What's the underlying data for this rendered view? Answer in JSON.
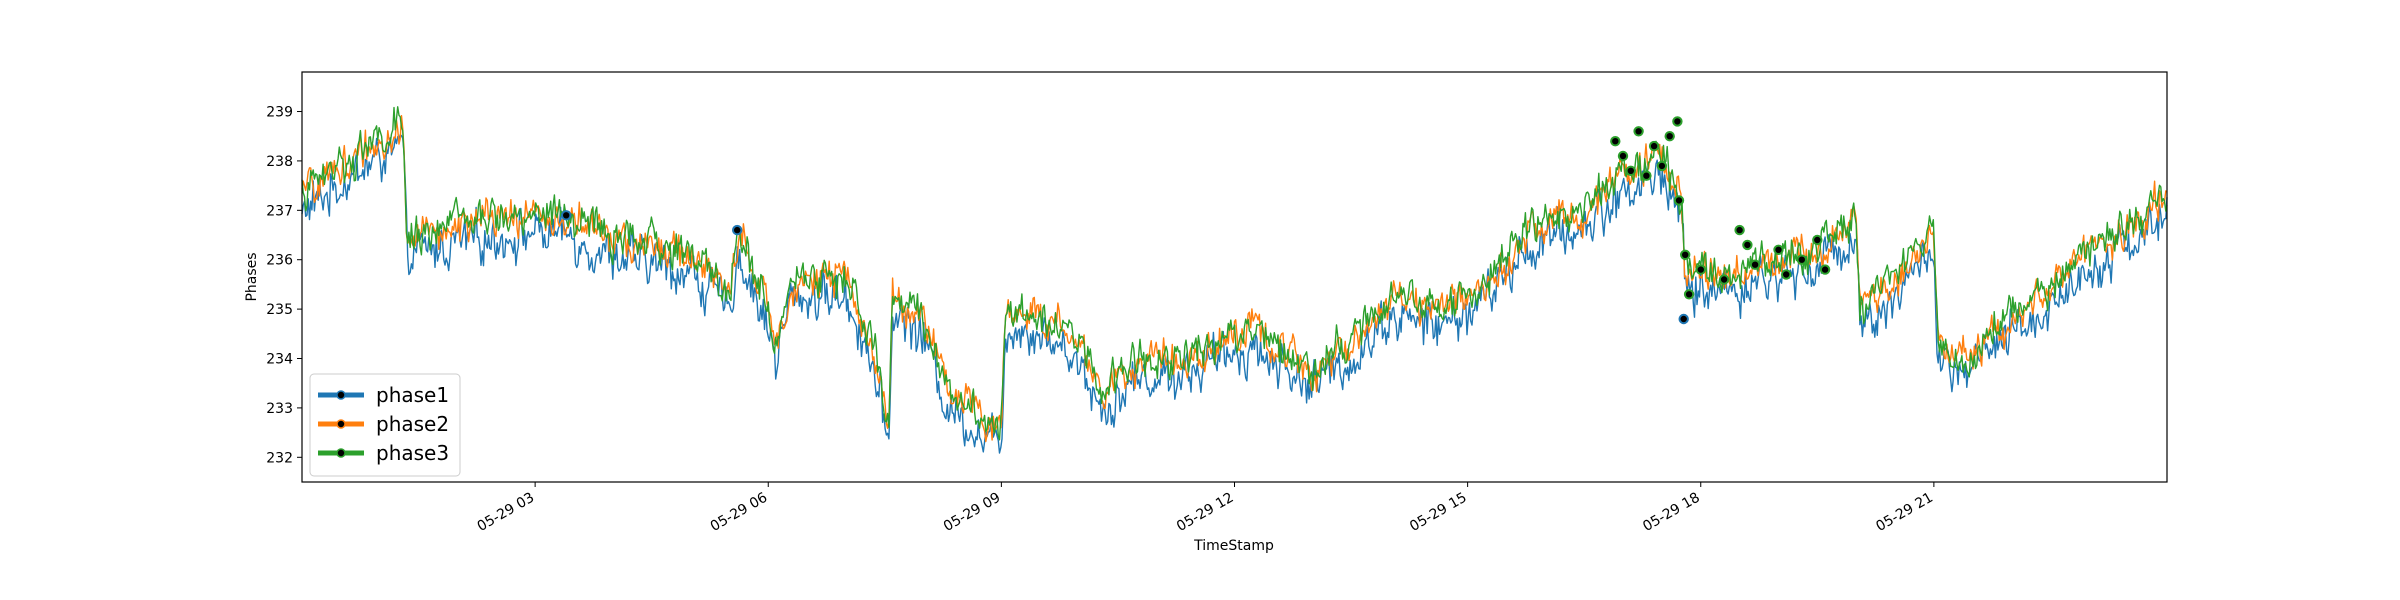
{
  "chart_data": {
    "type": "line",
    "title": "",
    "xlabel": "TimeStamp",
    "ylabel": "Phases",
    "x_domain": [
      "2023-05-29 00:00",
      "2023-05-30 00:00"
    ],
    "xlim_hours": [
      0,
      24
    ],
    "ylim": [
      231.5,
      239.8
    ],
    "x_ticks": [
      {
        "hour": 3,
        "label": "05-29 03"
      },
      {
        "hour": 6,
        "label": "05-29 06"
      },
      {
        "hour": 9,
        "label": "05-29 09"
      },
      {
        "hour": 12,
        "label": "05-29 12"
      },
      {
        "hour": 15,
        "label": "05-29 15"
      },
      {
        "hour": 18,
        "label": "05-29 18"
      },
      {
        "hour": 21,
        "label": "05-29 21"
      }
    ],
    "y_ticks": [
      232,
      233,
      234,
      235,
      236,
      237,
      238,
      239
    ],
    "grid": false,
    "legend_position": "lower-left",
    "series": [
      {
        "name": "phase1",
        "color": "#1f77b4",
        "offset": -0.35,
        "noise": 0.55
      },
      {
        "name": "phase2",
        "color": "#ff7f0e",
        "offset": 0.0,
        "noise": 0.45
      },
      {
        "name": "phase3",
        "color": "#2ca02c",
        "offset": 0.05,
        "noise": 0.45
      }
    ],
    "base_profile_hours": [
      [
        0.0,
        237.3
      ],
      [
        0.5,
        237.9
      ],
      [
        1.0,
        238.4
      ],
      [
        1.3,
        238.6
      ],
      [
        1.35,
        236.4
      ],
      [
        2.0,
        236.7
      ],
      [
        3.0,
        236.9
      ],
      [
        3.5,
        236.8
      ],
      [
        4.0,
        236.4
      ],
      [
        5.0,
        236.1
      ],
      [
        5.5,
        235.3
      ],
      [
        5.6,
        236.5
      ],
      [
        6.0,
        235.0
      ],
      [
        6.1,
        234.3
      ],
      [
        6.3,
        235.6
      ],
      [
        7.0,
        235.6
      ],
      [
        7.3,
        234.5
      ],
      [
        7.55,
        232.6
      ],
      [
        7.6,
        235.3
      ],
      [
        8.0,
        234.8
      ],
      [
        8.3,
        233.4
      ],
      [
        8.7,
        232.9
      ],
      [
        9.0,
        232.6
      ],
      [
        9.05,
        235.0
      ],
      [
        9.5,
        234.9
      ],
      [
        10.0,
        234.3
      ],
      [
        10.3,
        233.3
      ],
      [
        10.7,
        233.9
      ],
      [
        11.5,
        234.1
      ],
      [
        12.2,
        234.6
      ],
      [
        12.6,
        234.2
      ],
      [
        13.0,
        233.8
      ],
      [
        13.5,
        234.3
      ],
      [
        14.0,
        235.2
      ],
      [
        14.7,
        235.0
      ],
      [
        15.2,
        235.5
      ],
      [
        15.8,
        236.6
      ],
      [
        16.5,
        237.0
      ],
      [
        17.0,
        237.7
      ],
      [
        17.5,
        238.1
      ],
      [
        17.75,
        237.3
      ],
      [
        17.8,
        235.7
      ],
      [
        18.5,
        235.8
      ],
      [
        19.5,
        236.2
      ],
      [
        20.0,
        236.9
      ],
      [
        20.05,
        235.0
      ],
      [
        20.5,
        235.6
      ],
      [
        21.0,
        236.6
      ],
      [
        21.05,
        234.3
      ],
      [
        21.3,
        233.9
      ],
      [
        22.0,
        234.8
      ],
      [
        22.5,
        235.4
      ],
      [
        23.0,
        236.2
      ],
      [
        24.0,
        237.2
      ]
    ],
    "marker_points": [
      {
        "series": "phase1",
        "hour": 3.4,
        "y": 236.9
      },
      {
        "series": "phase1",
        "hour": 5.6,
        "y": 236.6
      },
      {
        "series": "phase3",
        "hour": 16.9,
        "y": 238.4
      },
      {
        "series": "phase3",
        "hour": 17.0,
        "y": 238.1
      },
      {
        "series": "phase3",
        "hour": 17.1,
        "y": 237.8
      },
      {
        "series": "phase3",
        "hour": 17.2,
        "y": 238.6
      },
      {
        "series": "phase3",
        "hour": 17.3,
        "y": 237.7
      },
      {
        "series": "phase3",
        "hour": 17.4,
        "y": 238.3
      },
      {
        "series": "phase3",
        "hour": 17.5,
        "y": 237.9
      },
      {
        "series": "phase3",
        "hour": 17.6,
        "y": 238.5
      },
      {
        "series": "phase3",
        "hour": 17.7,
        "y": 238.8
      },
      {
        "series": "phase3",
        "hour": 17.72,
        "y": 237.2
      },
      {
        "series": "phase1",
        "hour": 17.78,
        "y": 234.8
      },
      {
        "series": "phase3",
        "hour": 17.8,
        "y": 236.1
      },
      {
        "series": "phase3",
        "hour": 17.85,
        "y": 235.3
      },
      {
        "series": "phase3",
        "hour": 18.0,
        "y": 235.8
      },
      {
        "series": "phase3",
        "hour": 18.3,
        "y": 235.6
      },
      {
        "series": "phase3",
        "hour": 18.5,
        "y": 236.6
      },
      {
        "series": "phase3",
        "hour": 18.6,
        "y": 236.3
      },
      {
        "series": "phase3",
        "hour": 18.7,
        "y": 235.9
      },
      {
        "series": "phase3",
        "hour": 19.0,
        "y": 236.2
      },
      {
        "series": "phase3",
        "hour": 19.1,
        "y": 235.7
      },
      {
        "series": "phase3",
        "hour": 19.3,
        "y": 236.0
      },
      {
        "series": "phase3",
        "hour": 19.5,
        "y": 236.4
      },
      {
        "series": "phase3",
        "hour": 19.6,
        "y": 235.8
      }
    ]
  }
}
